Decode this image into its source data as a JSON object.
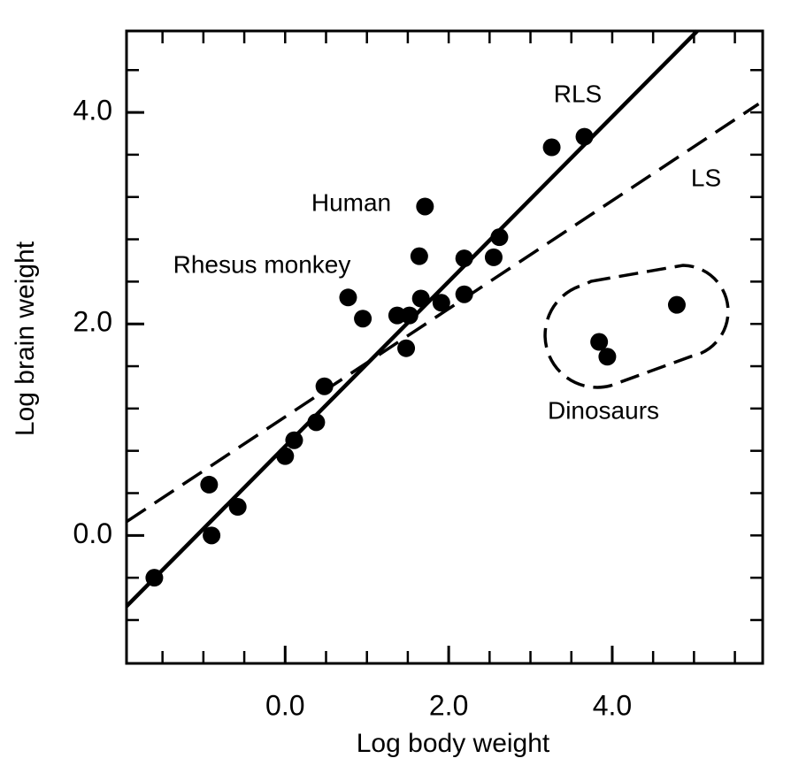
{
  "chart_data": {
    "type": "scatter",
    "xlabel": "Log body weight",
    "ylabel": "Log brain weight",
    "xlim": [
      -1.94,
      5.84
    ],
    "ylim": [
      -1.21,
      4.77
    ],
    "xticks": [
      {
        "value": 0,
        "label": "0.0"
      },
      {
        "value": 2,
        "label": "2.0"
      },
      {
        "value": 4,
        "label": "4.0"
      }
    ],
    "yticks": [
      {
        "value": 0,
        "label": "0.0"
      },
      {
        "value": 2,
        "label": "2.0"
      },
      {
        "value": 4,
        "label": "4.0"
      }
    ],
    "xminorticks": [
      -1.5,
      -1,
      -0.5,
      0,
      0.5,
      1,
      1.5,
      2,
      2.5,
      3,
      3.5,
      4,
      4.5,
      5,
      5.5
    ],
    "yminorticks": [
      -0.8,
      -0.4,
      0,
      0.4,
      0.8,
      1.2,
      1.6,
      2,
      2.4,
      2.8,
      3.2,
      3.6,
      4,
      4.4
    ],
    "color": "#000000",
    "x": [
      -1.6,
      -0.93,
      -0.9,
      -0.58,
      0.0,
      0.11,
      0.38,
      0.48,
      0.77,
      0.95,
      1.37,
      1.48,
      1.52,
      1.64,
      1.66,
      1.71,
      1.91,
      2.19,
      2.19,
      2.55,
      2.62,
      3.26,
      3.66,
      3.84,
      3.94,
      4.79
    ],
    "values": [
      -0.4,
      0.48,
      0.0,
      0.27,
      0.75,
      0.9,
      1.07,
      1.41,
      2.25,
      2.05,
      2.08,
      1.77,
      2.08,
      2.64,
      2.24,
      3.11,
      2.2,
      2.62,
      2.28,
      2.63,
      2.82,
      3.67,
      3.77,
      1.83,
      1.69,
      2.18
    ],
    "lines": [
      {
        "name": "RLS",
        "x": [
          -1.94,
          5.04
        ],
        "values": [
          -0.67,
          4.77
        ],
        "dashed": false
      },
      {
        "name": "LS",
        "x": [
          -1.94,
          5.79
        ],
        "values": [
          0.13,
          4.08
        ],
        "dashed": true
      }
    ],
    "annotations": [
      "Human",
      "Rhesus monkey",
      "Dinosaurs"
    ]
  }
}
